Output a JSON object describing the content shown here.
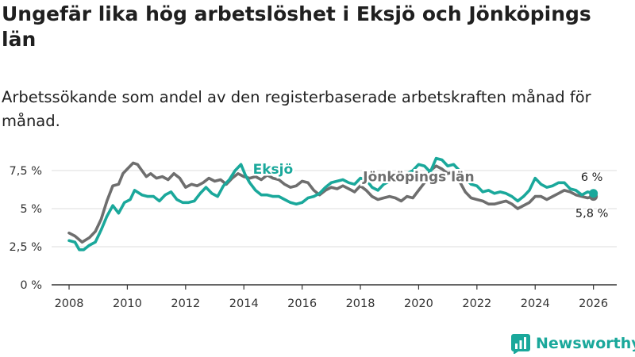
{
  "header": {
    "title": "Ungefär lika hög arbetslöshet i Eksjö och Jönköpings län",
    "subtitle": "Arbetssökande som andel av den registerbaserade arbetskraften månad för månad."
  },
  "brand": {
    "name": "Newsworthy",
    "color": "#1aa89b"
  },
  "chart_data": {
    "type": "line",
    "title": "Ungefär lika hög arbetslöshet i Eksjö och Jönköpings län",
    "subtitle": "Arbetssökande som andel av den registerbaserade arbetskraften månad för månad.",
    "xlabel": "",
    "ylabel": "",
    "xlim": [
      2007.4,
      2026.8
    ],
    "ylim": [
      0,
      8.8
    ],
    "x_ticks": [
      2008,
      2010,
      2012,
      2014,
      2016,
      2018,
      2020,
      2022,
      2024,
      2026
    ],
    "y_ticks": [
      0,
      2.5,
      5,
      7.5
    ],
    "y_tick_labels": [
      "0 %",
      "2,5 %",
      "5 %",
      "7,5 %"
    ],
    "grid": true,
    "series": [
      {
        "name": "Jönköpings län",
        "color": "#6e6e6e",
        "end_label": "5,8 %",
        "points": [
          [
            2008.0,
            3.4
          ],
          [
            2008.2,
            3.2
          ],
          [
            2008.45,
            2.8
          ],
          [
            2008.7,
            3.1
          ],
          [
            2008.9,
            3.5
          ],
          [
            2009.1,
            4.3
          ],
          [
            2009.3,
            5.5
          ],
          [
            2009.5,
            6.5
          ],
          [
            2009.7,
            6.6
          ],
          [
            2009.85,
            7.3
          ],
          [
            2010.0,
            7.6
          ],
          [
            2010.2,
            8.0
          ],
          [
            2010.35,
            7.9
          ],
          [
            2010.5,
            7.5
          ],
          [
            2010.65,
            7.1
          ],
          [
            2010.8,
            7.3
          ],
          [
            2011.0,
            7.0
          ],
          [
            2011.2,
            7.1
          ],
          [
            2011.4,
            6.9
          ],
          [
            2011.6,
            7.3
          ],
          [
            2011.8,
            7.0
          ],
          [
            2012.0,
            6.4
          ],
          [
            2012.2,
            6.6
          ],
          [
            2012.4,
            6.5
          ],
          [
            2012.6,
            6.7
          ],
          [
            2012.8,
            7.0
          ],
          [
            2013.0,
            6.8
          ],
          [
            2013.2,
            6.9
          ],
          [
            2013.4,
            6.6
          ],
          [
            2013.6,
            7.0
          ],
          [
            2013.8,
            7.3
          ],
          [
            2014.0,
            7.1
          ],
          [
            2014.2,
            7.0
          ],
          [
            2014.4,
            7.1
          ],
          [
            2014.6,
            6.9
          ],
          [
            2014.8,
            7.2
          ],
          [
            2015.0,
            7.0
          ],
          [
            2015.2,
            6.9
          ],
          [
            2015.4,
            6.6
          ],
          [
            2015.6,
            6.4
          ],
          [
            2015.8,
            6.5
          ],
          [
            2016.0,
            6.8
          ],
          [
            2016.2,
            6.7
          ],
          [
            2016.4,
            6.2
          ],
          [
            2016.6,
            5.9
          ],
          [
            2016.8,
            6.2
          ],
          [
            2017.0,
            6.4
          ],
          [
            2017.2,
            6.3
          ],
          [
            2017.4,
            6.5
          ],
          [
            2017.6,
            6.3
          ],
          [
            2017.8,
            6.1
          ],
          [
            2018.0,
            6.5
          ],
          [
            2018.2,
            6.2
          ],
          [
            2018.4,
            5.8
          ],
          [
            2018.6,
            5.6
          ],
          [
            2018.8,
            5.7
          ],
          [
            2019.0,
            5.8
          ],
          [
            2019.2,
            5.7
          ],
          [
            2019.4,
            5.5
          ],
          [
            2019.6,
            5.8
          ],
          [
            2019.8,
            5.7
          ],
          [
            2020.0,
            6.2
          ],
          [
            2020.2,
            6.7
          ],
          [
            2020.4,
            7.5
          ],
          [
            2020.6,
            7.8
          ],
          [
            2020.8,
            7.6
          ],
          [
            2021.0,
            7.3
          ],
          [
            2021.2,
            7.4
          ],
          [
            2021.4,
            6.8
          ],
          [
            2021.6,
            6.1
          ],
          [
            2021.8,
            5.7
          ],
          [
            2022.0,
            5.6
          ],
          [
            2022.2,
            5.5
          ],
          [
            2022.4,
            5.3
          ],
          [
            2022.6,
            5.3
          ],
          [
            2022.8,
            5.4
          ],
          [
            2023.0,
            5.5
          ],
          [
            2023.2,
            5.3
          ],
          [
            2023.4,
            5.0
          ],
          [
            2023.6,
            5.2
          ],
          [
            2023.8,
            5.4
          ],
          [
            2024.0,
            5.8
          ],
          [
            2024.2,
            5.8
          ],
          [
            2024.4,
            5.6
          ],
          [
            2024.6,
            5.8
          ],
          [
            2024.8,
            6.0
          ],
          [
            2025.0,
            6.2
          ],
          [
            2025.2,
            6.1
          ],
          [
            2025.4,
            5.9
          ],
          [
            2025.6,
            5.8
          ],
          [
            2025.8,
            5.7
          ],
          [
            2026.0,
            5.8
          ]
        ]
      },
      {
        "name": "Eksjö",
        "color": "#1aa89b",
        "end_label": "6 %",
        "points": [
          [
            2008.0,
            2.9
          ],
          [
            2008.2,
            2.8
          ],
          [
            2008.35,
            2.3
          ],
          [
            2008.5,
            2.3
          ],
          [
            2008.7,
            2.6
          ],
          [
            2008.9,
            2.8
          ],
          [
            2009.1,
            3.6
          ],
          [
            2009.3,
            4.5
          ],
          [
            2009.5,
            5.2
          ],
          [
            2009.7,
            4.7
          ],
          [
            2009.9,
            5.4
          ],
          [
            2010.1,
            5.6
          ],
          [
            2010.25,
            6.2
          ],
          [
            2010.5,
            5.9
          ],
          [
            2010.7,
            5.8
          ],
          [
            2010.9,
            5.8
          ],
          [
            2011.1,
            5.5
          ],
          [
            2011.3,
            5.9
          ],
          [
            2011.5,
            6.1
          ],
          [
            2011.7,
            5.6
          ],
          [
            2011.9,
            5.4
          ],
          [
            2012.1,
            5.4
          ],
          [
            2012.3,
            5.5
          ],
          [
            2012.5,
            6.0
          ],
          [
            2012.7,
            6.4
          ],
          [
            2012.9,
            6.0
          ],
          [
            2013.1,
            5.8
          ],
          [
            2013.3,
            6.5
          ],
          [
            2013.5,
            6.9
          ],
          [
            2013.7,
            7.5
          ],
          [
            2013.9,
            7.9
          ],
          [
            2014.05,
            7.2
          ],
          [
            2014.2,
            6.7
          ],
          [
            2014.4,
            6.2
          ],
          [
            2014.6,
            5.9
          ],
          [
            2014.8,
            5.9
          ],
          [
            2015.0,
            5.8
          ],
          [
            2015.2,
            5.8
          ],
          [
            2015.4,
            5.6
          ],
          [
            2015.6,
            5.4
          ],
          [
            2015.8,
            5.3
          ],
          [
            2016.0,
            5.4
          ],
          [
            2016.2,
            5.7
          ],
          [
            2016.4,
            5.8
          ],
          [
            2016.6,
            6.0
          ],
          [
            2016.8,
            6.4
          ],
          [
            2017.0,
            6.7
          ],
          [
            2017.2,
            6.8
          ],
          [
            2017.4,
            6.9
          ],
          [
            2017.6,
            6.7
          ],
          [
            2017.8,
            6.6
          ],
          [
            2018.0,
            7.0
          ],
          [
            2018.2,
            6.9
          ],
          [
            2018.4,
            6.4
          ],
          [
            2018.6,
            6.2
          ],
          [
            2018.8,
            6.6
          ],
          [
            2019.0,
            6.8
          ],
          [
            2019.2,
            7.0
          ],
          [
            2019.4,
            7.1
          ],
          [
            2019.6,
            7.3
          ],
          [
            2019.8,
            7.5
          ],
          [
            2020.0,
            7.9
          ],
          [
            2020.2,
            7.8
          ],
          [
            2020.4,
            7.4
          ],
          [
            2020.6,
            8.3
          ],
          [
            2020.8,
            8.2
          ],
          [
            2021.0,
            7.8
          ],
          [
            2021.2,
            7.9
          ],
          [
            2021.4,
            7.5
          ],
          [
            2021.6,
            7.0
          ],
          [
            2021.8,
            6.6
          ],
          [
            2022.0,
            6.5
          ],
          [
            2022.2,
            6.1
          ],
          [
            2022.4,
            6.2
          ],
          [
            2022.6,
            6.0
          ],
          [
            2022.8,
            6.1
          ],
          [
            2023.0,
            6.0
          ],
          [
            2023.2,
            5.8
          ],
          [
            2023.4,
            5.5
          ],
          [
            2023.6,
            5.8
          ],
          [
            2023.8,
            6.2
          ],
          [
            2024.0,
            7.0
          ],
          [
            2024.2,
            6.6
          ],
          [
            2024.4,
            6.4
          ],
          [
            2024.6,
            6.5
          ],
          [
            2024.8,
            6.7
          ],
          [
            2025.0,
            6.7
          ],
          [
            2025.2,
            6.3
          ],
          [
            2025.4,
            6.2
          ],
          [
            2025.6,
            5.9
          ],
          [
            2025.8,
            6.1
          ],
          [
            2026.0,
            6.0
          ]
        ]
      }
    ],
    "series_labels": [
      {
        "series": "Eksjö",
        "text": "Eksjö",
        "at": [
          2015.0,
          7.3
        ]
      },
      {
        "series": "Jönköpings län",
        "text": "Jönköpings län",
        "at": [
          2020.0,
          6.8
        ]
      }
    ]
  }
}
